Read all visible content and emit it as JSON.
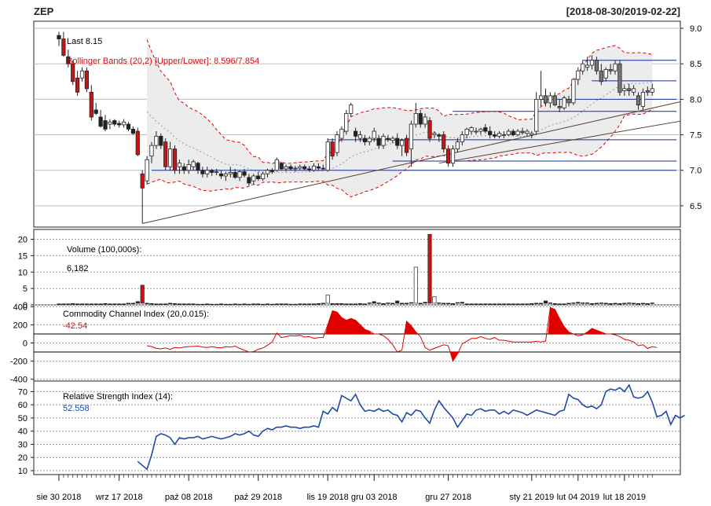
{
  "ticker": "ZEP",
  "date_range": "[2018-08-30/2019-02-22]",
  "colors": {
    "up": "#ffffff",
    "down": "#222222",
    "down_red": "#d11111",
    "bb": "#e00000",
    "hline": "#1a2a9a",
    "trend": "#5a3a2a",
    "cci": "#e00000",
    "rsi": "#1f4aa8",
    "band_fill": "#ececec"
  },
  "price_panel": {
    "last_label": "Last 8.15",
    "bb_label": "Bollinger Bands (20,2) [Upper/Lower]: 8.596/7.854",
    "ticks": [
      "9.0",
      "8.5",
      "8.0",
      "7.5",
      "7.0",
      "6.5"
    ],
    "tick_values": [
      9.0,
      8.5,
      8.0,
      7.5,
      7.0,
      6.5
    ],
    "ylim": [
      6.2,
      9.1
    ]
  },
  "volume_panel": {
    "label": "Volume (100,000s):",
    "value": "6,182",
    "ticks": [
      "20",
      "15",
      "10",
      "5",
      "0"
    ],
    "tick_values": [
      20,
      15,
      10,
      5,
      0
    ]
  },
  "cci_panel": {
    "label": "Commodity Channel Index (20,0.015):",
    "value": "-42.54",
    "ticks": [
      "400",
      "200",
      "0",
      "-200",
      "-400"
    ],
    "tick_values": [
      400,
      200,
      0,
      -200,
      -400
    ]
  },
  "rsi_panel": {
    "label": "Relative Strength Index (14):",
    "value": "52.558",
    "ticks": [
      "70",
      "60",
      "50",
      "40",
      "30",
      "20",
      "10"
    ],
    "tick_values": [
      70,
      60,
      50,
      40,
      30,
      20,
      10
    ]
  },
  "x_labels": [
    "sie 30 2018",
    "wrz 17 2018",
    "paź 08 2018",
    "paź 29 2018",
    "lis 19 2018",
    "gru 03 2018",
    "gru 27 2018",
    "sty 21 2019",
    "lut 04 2019",
    "lut 18 2019"
  ],
  "x_label_index": [
    0,
    13,
    28,
    43,
    58,
    68,
    84,
    102,
    112,
    122
  ],
  "chart_data": {
    "type": "candlestick",
    "title": "ZEP",
    "subtitle": "[2018-08-30/2019-02-22]",
    "candles": [
      {
        "o": 8.9,
        "h": 8.95,
        "l": 8.75,
        "c": 8.85
      },
      {
        "o": 8.85,
        "h": 8.95,
        "l": 8.6,
        "c": 8.62
      },
      {
        "o": 8.6,
        "h": 8.7,
        "l": 8.45,
        "c": 8.5
      },
      {
        "o": 8.5,
        "h": 8.55,
        "l": 8.2,
        "c": 8.25
      },
      {
        "o": 8.3,
        "h": 8.4,
        "l": 8.05,
        "c": 8.1
      },
      {
        "o": 8.3,
        "h": 8.45,
        "l": 8.25,
        "c": 8.4
      },
      {
        "o": 8.4,
        "h": 8.45,
        "l": 8.1,
        "c": 8.15
      },
      {
        "o": 8.1,
        "h": 8.2,
        "l": 7.7,
        "c": 7.75
      },
      {
        "o": 7.85,
        "h": 7.95,
        "l": 7.78,
        "c": 7.8
      },
      {
        "o": 7.75,
        "h": 7.85,
        "l": 7.6,
        "c": 7.62
      },
      {
        "o": 7.7,
        "h": 7.78,
        "l": 7.55,
        "c": 7.58
      },
      {
        "o": 7.65,
        "h": 7.72,
        "l": 7.58,
        "c": 7.68
      },
      {
        "o": 7.7,
        "h": 7.72,
        "l": 7.62,
        "c": 7.65
      },
      {
        "o": 7.66,
        "h": 7.7,
        "l": 7.6,
        "c": 7.64
      },
      {
        "o": 7.64,
        "h": 7.72,
        "l": 7.6,
        "c": 7.68
      },
      {
        "o": 7.65,
        "h": 7.68,
        "l": 7.55,
        "c": 7.58
      },
      {
        "o": 7.58,
        "h": 7.62,
        "l": 7.5,
        "c": 7.52
      },
      {
        "o": 7.55,
        "h": 7.6,
        "l": 7.2,
        "c": 7.22
      },
      {
        "o": 6.95,
        "h": 7.0,
        "l": 6.25,
        "c": 6.75
      },
      {
        "o": 6.85,
        "h": 7.2,
        "l": 6.8,
        "c": 7.15
      },
      {
        "o": 7.2,
        "h": 7.4,
        "l": 7.1,
        "c": 7.35
      },
      {
        "o": 7.35,
        "h": 7.55,
        "l": 7.3,
        "c": 7.48
      },
      {
        "o": 7.48,
        "h": 7.52,
        "l": 7.3,
        "c": 7.35
      },
      {
        "o": 7.4,
        "h": 7.45,
        "l": 7.0,
        "c": 7.05
      },
      {
        "o": 7.05,
        "h": 7.4,
        "l": 7.0,
        "c": 7.3
      },
      {
        "o": 7.3,
        "h": 7.35,
        "l": 6.95,
        "c": 7.0
      },
      {
        "o": 7.05,
        "h": 7.15,
        "l": 6.95,
        "c": 7.1
      },
      {
        "o": 7.05,
        "h": 7.1,
        "l": 6.95,
        "c": 7.0
      },
      {
        "o": 7.0,
        "h": 7.15,
        "l": 6.95,
        "c": 7.08
      },
      {
        "o": 7.05,
        "h": 7.15,
        "l": 7.0,
        "c": 7.12
      },
      {
        "o": 7.1,
        "h": 7.12,
        "l": 6.95,
        "c": 7.0
      },
      {
        "o": 7.0,
        "h": 7.05,
        "l": 6.9,
        "c": 6.95
      },
      {
        "o": 6.95,
        "h": 7.05,
        "l": 6.9,
        "c": 7.0
      },
      {
        "o": 7.0,
        "h": 7.02,
        "l": 6.92,
        "c": 6.97
      },
      {
        "o": 6.97,
        "h": 7.02,
        "l": 6.93,
        "c": 6.98
      },
      {
        "o": 6.95,
        "h": 7.0,
        "l": 6.88,
        "c": 6.92
      },
      {
        "o": 6.92,
        "h": 6.98,
        "l": 6.85,
        "c": 6.95
      },
      {
        "o": 6.95,
        "h": 7.05,
        "l": 6.9,
        "c": 6.97
      },
      {
        "o": 6.97,
        "h": 7.02,
        "l": 6.88,
        "c": 6.9
      },
      {
        "o": 6.9,
        "h": 7.0,
        "l": 6.85,
        "c": 6.98
      },
      {
        "o": 6.98,
        "h": 7.02,
        "l": 6.9,
        "c": 6.93
      },
      {
        "o": 6.9,
        "h": 6.95,
        "l": 6.78,
        "c": 6.82
      },
      {
        "o": 6.85,
        "h": 6.95,
        "l": 6.8,
        "c": 6.92
      },
      {
        "o": 6.92,
        "h": 6.98,
        "l": 6.85,
        "c": 6.88
      },
      {
        "o": 6.88,
        "h": 6.98,
        "l": 6.85,
        "c": 6.95
      },
      {
        "o": 6.95,
        "h": 7.02,
        "l": 6.9,
        "c": 7.0
      },
      {
        "o": 7.0,
        "h": 7.03,
        "l": 6.95,
        "c": 6.98
      },
      {
        "o": 7.0,
        "h": 7.18,
        "l": 6.98,
        "c": 7.15
      },
      {
        "o": 7.1,
        "h": 7.12,
        "l": 7.0,
        "c": 7.02
      },
      {
        "o": 7.02,
        "h": 7.08,
        "l": 6.98,
        "c": 7.05
      },
      {
        "o": 7.05,
        "h": 7.08,
        "l": 7.0,
        "c": 7.02
      },
      {
        "o": 7.02,
        "h": 7.06,
        "l": 6.98,
        "c": 7.03
      },
      {
        "o": 7.03,
        "h": 7.08,
        "l": 7.0,
        "c": 7.05
      },
      {
        "o": 7.05,
        "h": 7.08,
        "l": 7.0,
        "c": 7.02
      },
      {
        "o": 7.02,
        "h": 7.06,
        "l": 6.98,
        "c": 7.01
      },
      {
        "o": 7.0,
        "h": 7.1,
        "l": 6.98,
        "c": 7.06
      },
      {
        "o": 7.05,
        "h": 7.1,
        "l": 7.0,
        "c": 7.03
      },
      {
        "o": 7.03,
        "h": 7.08,
        "l": 7.0,
        "c": 7.02
      },
      {
        "o": 7.0,
        "h": 7.45,
        "l": 6.98,
        "c": 7.4
      },
      {
        "o": 7.4,
        "h": 7.45,
        "l": 7.15,
        "c": 7.2
      },
      {
        "o": 7.25,
        "h": 7.55,
        "l": 7.2,
        "c": 7.5
      },
      {
        "o": 7.45,
        "h": 7.62,
        "l": 7.4,
        "c": 7.58
      },
      {
        "o": 7.55,
        "h": 7.85,
        "l": 7.5,
        "c": 7.8
      },
      {
        "o": 7.8,
        "h": 7.95,
        "l": 7.75,
        "c": 7.92
      },
      {
        "o": 7.55,
        "h": 7.6,
        "l": 7.4,
        "c": 7.48
      },
      {
        "o": 7.45,
        "h": 7.55,
        "l": 7.4,
        "c": 7.5
      },
      {
        "o": 7.45,
        "h": 7.5,
        "l": 7.35,
        "c": 7.4
      },
      {
        "o": 7.4,
        "h": 7.48,
        "l": 7.35,
        "c": 7.45
      },
      {
        "o": 7.45,
        "h": 7.6,
        "l": 7.4,
        "c": 7.55
      },
      {
        "o": 7.45,
        "h": 7.5,
        "l": 7.3,
        "c": 7.35
      },
      {
        "o": 7.35,
        "h": 7.52,
        "l": 7.3,
        "c": 7.48
      },
      {
        "o": 7.45,
        "h": 7.5,
        "l": 7.4,
        "c": 7.44
      },
      {
        "o": 7.42,
        "h": 7.48,
        "l": 7.38,
        "c": 7.45
      },
      {
        "o": 7.45,
        "h": 7.52,
        "l": 7.3,
        "c": 7.35
      },
      {
        "o": 7.35,
        "h": 7.45,
        "l": 7.2,
        "c": 7.42
      },
      {
        "o": 7.45,
        "h": 7.5,
        "l": 7.2,
        "c": 7.25
      },
      {
        "o": 7.3,
        "h": 7.7,
        "l": 7.05,
        "c": 7.65
      },
      {
        "o": 7.65,
        "h": 7.95,
        "l": 7.6,
        "c": 7.8
      },
      {
        "o": 7.8,
        "h": 7.85,
        "l": 7.6,
        "c": 7.65
      },
      {
        "o": 7.65,
        "h": 7.8,
        "l": 7.6,
        "c": 7.75
      },
      {
        "o": 7.7,
        "h": 7.75,
        "l": 7.4,
        "c": 7.45
      },
      {
        "o": 7.5,
        "h": 7.55,
        "l": 7.45,
        "c": 7.52
      },
      {
        "o": 7.5,
        "h": 7.52,
        "l": 7.4,
        "c": 7.48
      },
      {
        "o": 7.5,
        "h": 7.55,
        "l": 7.25,
        "c": 7.3
      },
      {
        "o": 7.3,
        "h": 7.35,
        "l": 7.05,
        "c": 7.1
      },
      {
        "o": 7.1,
        "h": 7.35,
        "l": 7.05,
        "c": 7.3
      },
      {
        "o": 7.3,
        "h": 7.45,
        "l": 7.25,
        "c": 7.4
      },
      {
        "o": 7.4,
        "h": 7.55,
        "l": 7.35,
        "c": 7.5
      },
      {
        "o": 7.5,
        "h": 7.6,
        "l": 7.45,
        "c": 7.58
      },
      {
        "o": 7.55,
        "h": 7.62,
        "l": 7.5,
        "c": 7.6
      },
      {
        "o": 7.55,
        "h": 7.6,
        "l": 7.5,
        "c": 7.55
      },
      {
        "o": 7.55,
        "h": 7.6,
        "l": 7.5,
        "c": 7.58
      },
      {
        "o": 7.6,
        "h": 7.65,
        "l": 7.52,
        "c": 7.55
      },
      {
        "o": 7.55,
        "h": 7.62,
        "l": 7.45,
        "c": 7.5
      },
      {
        "o": 7.5,
        "h": 7.55,
        "l": 7.45,
        "c": 7.48
      },
      {
        "o": 7.48,
        "h": 7.55,
        "l": 7.45,
        "c": 7.52
      },
      {
        "o": 7.5,
        "h": 7.55,
        "l": 7.45,
        "c": 7.5
      },
      {
        "o": 7.5,
        "h": 7.58,
        "l": 7.48,
        "c": 7.55
      },
      {
        "o": 7.55,
        "h": 7.58,
        "l": 7.48,
        "c": 7.5
      },
      {
        "o": 7.5,
        "h": 7.58,
        "l": 7.48,
        "c": 7.55
      },
      {
        "o": 7.55,
        "h": 7.6,
        "l": 7.5,
        "c": 7.53
      },
      {
        "o": 7.52,
        "h": 7.58,
        "l": 7.48,
        "c": 7.55
      },
      {
        "o": 7.5,
        "h": 7.55,
        "l": 7.45,
        "c": 7.52
      },
      {
        "o": 7.55,
        "h": 8.1,
        "l": 7.5,
        "c": 8.0
      },
      {
        "o": 8.0,
        "h": 8.4,
        "l": 7.9,
        "c": 8.05
      },
      {
        "o": 8.05,
        "h": 8.15,
        "l": 7.9,
        "c": 7.95
      },
      {
        "o": 7.95,
        "h": 8.1,
        "l": 7.88,
        "c": 8.05
      },
      {
        "o": 8.05,
        "h": 8.1,
        "l": 7.9,
        "c": 7.92
      },
      {
        "o": 7.9,
        "h": 8.0,
        "l": 7.82,
        "c": 7.88
      },
      {
        "o": 7.88,
        "h": 8.05,
        "l": 7.85,
        "c": 8.02
      },
      {
        "o": 8.0,
        "h": 8.05,
        "l": 7.9,
        "c": 7.95
      },
      {
        "o": 7.95,
        "h": 8.3,
        "l": 7.92,
        "c": 8.28
      },
      {
        "o": 8.28,
        "h": 8.45,
        "l": 8.2,
        "c": 8.4
      },
      {
        "o": 8.4,
        "h": 8.55,
        "l": 8.35,
        "c": 8.5
      },
      {
        "o": 8.45,
        "h": 8.6,
        "l": 8.4,
        "c": 8.48
      },
      {
        "o": 8.48,
        "h": 8.62,
        "l": 8.42,
        "c": 8.55
      },
      {
        "o": 8.55,
        "h": 8.6,
        "l": 8.35,
        "c": 8.4
      },
      {
        "o": 8.4,
        "h": 8.5,
        "l": 8.2,
        "c": 8.25
      },
      {
        "o": 8.3,
        "h": 8.45,
        "l": 8.25,
        "c": 8.42
      },
      {
        "o": 8.42,
        "h": 8.5,
        "l": 8.35,
        "c": 8.4
      },
      {
        "o": 8.4,
        "h": 8.55,
        "l": 8.35,
        "c": 8.5
      },
      {
        "o": 8.5,
        "h": 8.55,
        "l": 8.05,
        "c": 8.1
      },
      {
        "o": 8.12,
        "h": 8.2,
        "l": 8.05,
        "c": 8.15
      },
      {
        "o": 8.15,
        "h": 8.22,
        "l": 8.05,
        "c": 8.12
      },
      {
        "o": 8.1,
        "h": 8.2,
        "l": 8.05,
        "c": 8.15
      },
      {
        "o": 8.05,
        "h": 8.1,
        "l": 7.85,
        "c": 7.92
      },
      {
        "o": 7.9,
        "h": 8.15,
        "l": 7.85,
        "c": 8.1
      },
      {
        "o": 8.12,
        "h": 8.18,
        "l": 8.05,
        "c": 8.1
      },
      {
        "o": 8.1,
        "h": 8.22,
        "l": 8.05,
        "c": 8.15
      }
    ],
    "horizontal_lines": [
      {
        "y": 8.55,
        "from": 115
      },
      {
        "y": 8.26,
        "from": 117
      },
      {
        "y": 8.0,
        "from": 106
      },
      {
        "y": 7.83,
        "from": 87
      },
      {
        "y": 7.43,
        "from": 60
      },
      {
        "y": 7.13,
        "from": 74
      },
      {
        "y": 7.0,
        "from": 22
      }
    ],
    "trend_lines": [
      {
        "x0": 18,
        "y0": 6.25,
        "x1": 133,
        "y1": 7.95
      },
      {
        "x0": 82,
        "y0": 7.1,
        "x1": 133,
        "y1": 7.68
      }
    ],
    "volume": [
      0.3,
      0.3,
      0.3,
      0.4,
      0.3,
      0.3,
      0.3,
      0.3,
      0.3,
      0.3,
      0.4,
      0.3,
      0.3,
      0.3,
      0.3,
      0.5,
      0.5,
      1.0,
      6.0,
      0.5,
      0.4,
      0.3,
      0.3,
      0.3,
      0.5,
      0.4,
      0.3,
      0.3,
      0.3,
      0.3,
      0.2,
      0.2,
      0.3,
      0.2,
      0.2,
      0.3,
      0.2,
      0.2,
      0.3,
      0.2,
      0.3,
      0.2,
      0.3,
      0.3,
      0.2,
      0.3,
      0.2,
      0.3,
      0.3,
      0.3,
      0.2,
      0.2,
      0.3,
      0.3,
      0.3,
      0.3,
      0.4,
      0.5,
      3.0,
      0.4,
      0.4,
      0.4,
      0.3,
      0.3,
      0.3,
      0.4,
      0.3,
      0.6,
      1.0,
      0.6,
      0.4,
      0.6,
      0.5,
      1.2,
      0.5,
      0.5,
      0.7,
      11.5,
      0.5,
      0.8,
      21.5,
      2.5,
      0.6,
      0.5,
      0.5,
      0.4,
      0.7,
      0.8,
      0.3,
      0.3,
      0.3,
      0.3,
      0.3,
      0.3,
      0.3,
      0.3,
      0.3,
      0.3,
      0.3,
      0.3,
      0.3,
      0.3,
      0.4,
      0.5,
      0.5,
      1.2,
      0.6,
      0.4,
      0.3,
      0.3,
      0.5,
      0.6,
      0.8,
      0.6,
      0.6,
      0.4,
      0.5,
      0.6,
      0.5,
      0.4,
      0.5,
      0.4,
      0.5,
      0.6,
      0.5,
      0.4,
      0.5,
      0.4,
      0.6
    ],
    "cci": [
      null,
      null,
      null,
      null,
      null,
      null,
      null,
      null,
      null,
      null,
      null,
      null,
      null,
      null,
      null,
      null,
      null,
      null,
      null,
      -30,
      -40,
      -60,
      -65,
      -55,
      -70,
      -50,
      -55,
      -45,
      -40,
      -38,
      -35,
      -45,
      -50,
      -40,
      -50,
      -55,
      -40,
      -45,
      -35,
      -60,
      -80,
      -100,
      -95,
      -70,
      -55,
      -25,
      10,
      110,
      60,
      70,
      80,
      75,
      85,
      65,
      70,
      50,
      60,
      60,
      200,
      355,
      340,
      280,
      250,
      270,
      250,
      200,
      150,
      130,
      100,
      100,
      80,
      40,
      -20,
      -100,
      -80,
      240,
      190,
      120,
      70,
      -50,
      -80,
      -60,
      -40,
      -20,
      -30,
      -200,
      -120,
      -10,
      20,
      50,
      50,
      70,
      50,
      40,
      60,
      30,
      30,
      20,
      10,
      10,
      10,
      10,
      10,
      20,
      10,
      20,
      390,
      370,
      270,
      180,
      120,
      100,
      80,
      90,
      120,
      160,
      140,
      120,
      100,
      100,
      90,
      70,
      40,
      30,
      10,
      -30,
      -20,
      -60,
      -40,
      -50
    ],
    "rsi": [
      null,
      null,
      null,
      null,
      null,
      null,
      null,
      null,
      null,
      null,
      null,
      null,
      null,
      null,
      null,
      null,
      null,
      17,
      14,
      11,
      22,
      36,
      38,
      37,
      35,
      30,
      35,
      34,
      35,
      35,
      36,
      34,
      35,
      36,
      35,
      34,
      35,
      36,
      38,
      37,
      38,
      40,
      37,
      36,
      40,
      42,
      41,
      43,
      43,
      44,
      43,
      43,
      42,
      43,
      43,
      44,
      43,
      55,
      53,
      58,
      55,
      67,
      65,
      63,
      68,
      60,
      55,
      56,
      55,
      57,
      55,
      56,
      53,
      52,
      47,
      54,
      52,
      56,
      55,
      50,
      46,
      56,
      63,
      58,
      54,
      50,
      43,
      48,
      53,
      52,
      56,
      57,
      55,
      56,
      56,
      53,
      55,
      53,
      56,
      55,
      54,
      52,
      54,
      56,
      55,
      54,
      53,
      52,
      55,
      56,
      68,
      65,
      64,
      60,
      58,
      59,
      57,
      60,
      70,
      72,
      71,
      73,
      70,
      75,
      66,
      65,
      66,
      70,
      62,
      51,
      52,
      55,
      45,
      52,
      50,
      52
    ]
  }
}
